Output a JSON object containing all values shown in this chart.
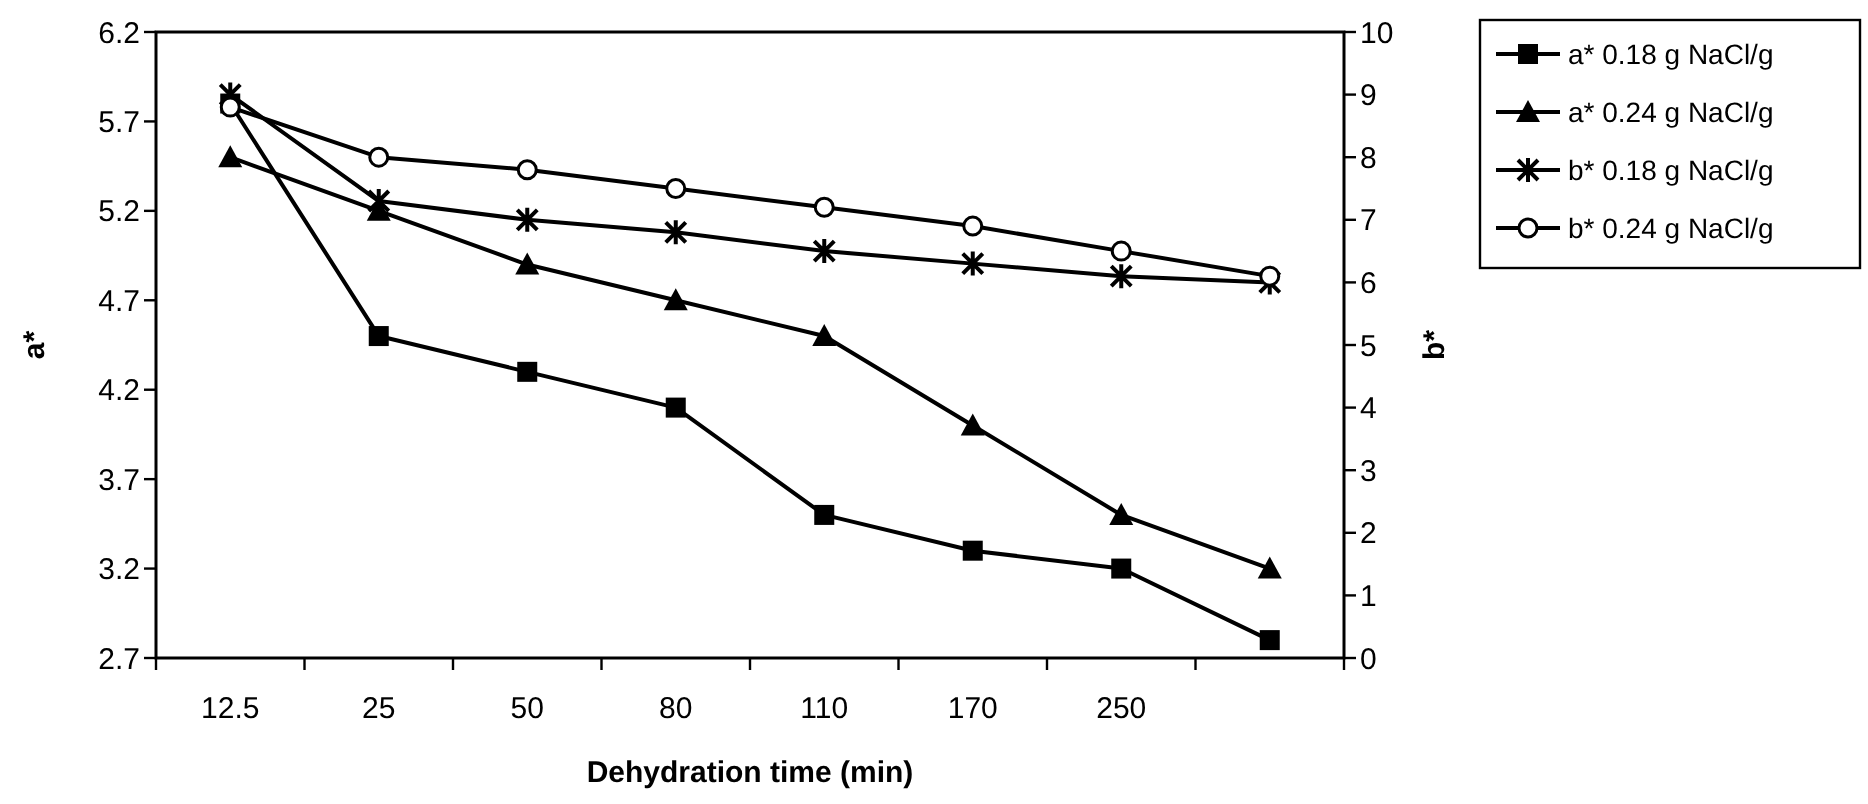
{
  "chart_data": {
    "type": "line",
    "xlabel": "Dehydration time (min)",
    "ylabel": "a*",
    "y2label": "b*",
    "categories": [
      "12.5",
      "25",
      "50",
      "80",
      "110",
      "170",
      "250",
      null
    ],
    "ylim": [
      2.7,
      6.2
    ],
    "yticks": [
      2.7,
      3.2,
      3.7,
      4.2,
      4.7,
      5.2,
      5.7,
      6.2
    ],
    "y2lim": [
      0,
      10
    ],
    "y2ticks": [
      0,
      1,
      2,
      3,
      4,
      5,
      6,
      7,
      8,
      9,
      10
    ],
    "legend": "right",
    "grid": false,
    "line_style": "solid",
    "series": [
      {
        "name": "a* 0.18 g NaCl/g",
        "color": "#000000",
        "marker": "square",
        "values": [
          5.8,
          4.5,
          4.3,
          4.1,
          3.5,
          3.3,
          3.2,
          2.8
        ]
      },
      {
        "name": "a* 0.24 g NaCl/g",
        "color": "#000000",
        "marker": "triangle",
        "values": [
          5.5,
          5.2,
          4.9,
          4.7,
          4.5,
          4.0,
          3.5,
          3.2
        ]
      },
      {
        "name": "b* 0.18 g NaCl/g",
        "color": "#000000",
        "marker": "cross",
        "axis": "y2",
        "values": [
          9.0,
          7.3,
          7.0,
          6.8,
          6.5,
          6.3,
          6.1,
          6.0
        ]
      },
      {
        "name": "b* 0.24 g NaCl/g",
        "color": "#000000",
        "marker": "circle",
        "axis": "y2",
        "values": [
          8.8,
          8.0,
          7.8,
          7.5,
          7.2,
          6.9,
          6.5,
          6.1
        ]
      }
    ]
  }
}
